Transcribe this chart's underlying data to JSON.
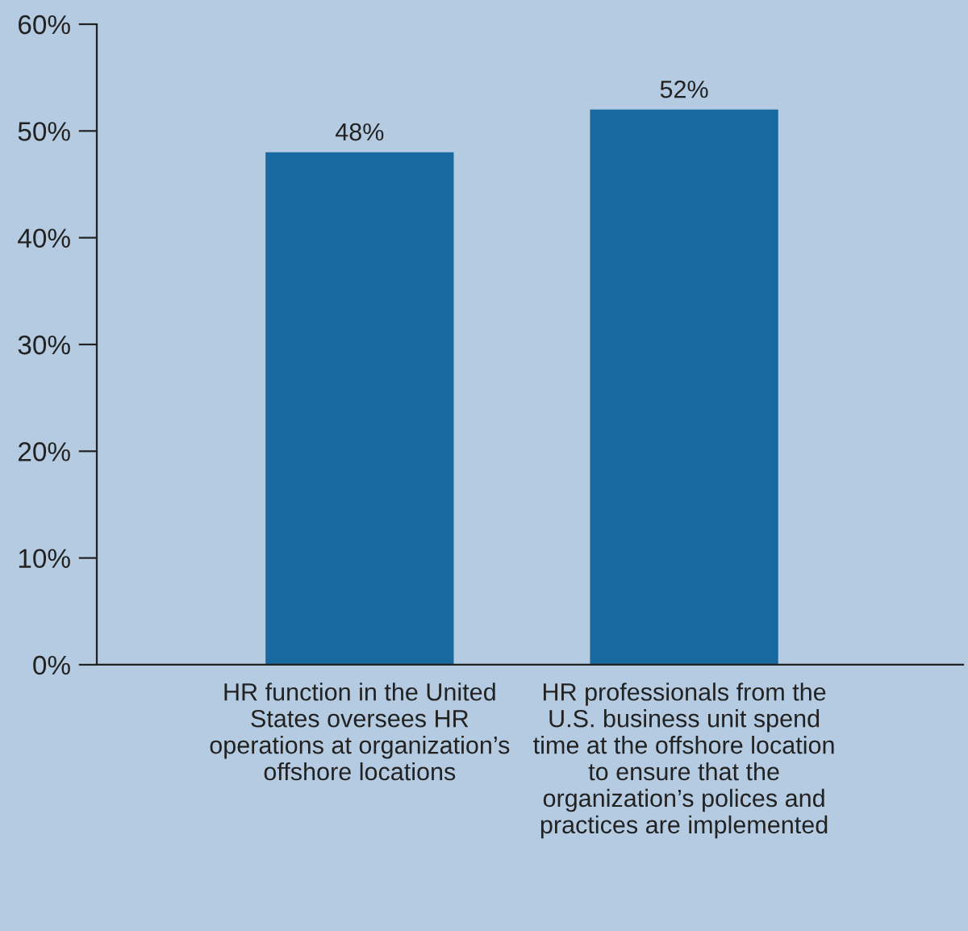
{
  "chart_data": {
    "type": "bar",
    "categories": [
      "HR function in the United\nStates oversees HR\noperations at organization’s\noffshore locations",
      "HR professionals from the\nU.S. business unit spend\ntime at the offshore location\nto ensure that the\norganization’s polices and\npractices are implemented"
    ],
    "values": [
      48,
      52
    ],
    "color": "#17699f",
    "data_labels": true,
    "value_labels": [
      "48%",
      "52%"
    ],
    "ylim": [
      0,
      60
    ],
    "yticks": [
      {
        "value": 0,
        "label": "0%"
      },
      {
        "value": 10,
        "label": "10%"
      },
      {
        "value": 20,
        "label": "20%"
      },
      {
        "value": 30,
        "label": "30%"
      },
      {
        "value": 40,
        "label": "40%"
      },
      {
        "value": 50,
        "label": "50%"
      },
      {
        "value": 60,
        "label": "60%"
      }
    ],
    "grid": false,
    "legend": false
  }
}
